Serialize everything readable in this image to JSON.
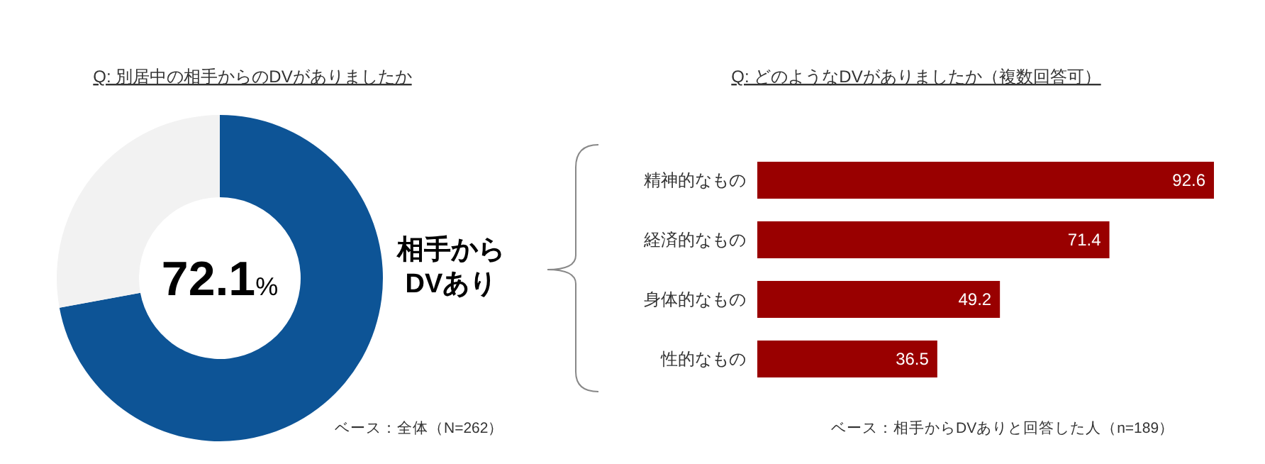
{
  "chart_data": [
    {
      "type": "donut",
      "title": "Q: 別居中の相手からのDVがありましたか",
      "categories": [
        "相手からDVあり",
        null
      ],
      "values": [
        72.1,
        27.9
      ],
      "colors": [
        "#0d5496",
        "#f2f2f2"
      ],
      "value_labels": [
        "72.1%",
        null
      ],
      "annotations": [
        "ベース：全体（N=262）"
      ]
    },
    {
      "type": "bar",
      "orientation": "horizontal",
      "title": "Q: どのようなDVがありましたか（複数回答可）",
      "categories": [
        "精神的なもの",
        "経済的なもの",
        "身体的なもの",
        "性的なもの"
      ],
      "values": [
        92.6,
        71.4,
        49.2,
        36.5
      ],
      "color": "#990000",
      "data_labels": true,
      "annotations": [
        "ベース：相手からDVありと回答した人（n=189）"
      ]
    }
  ]
}
